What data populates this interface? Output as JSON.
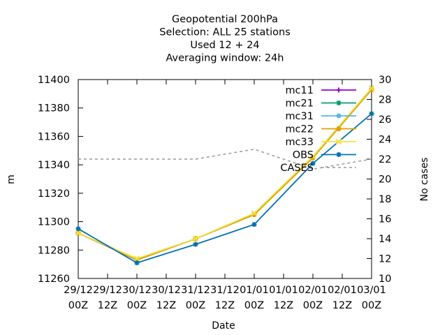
{
  "chart_data": {
    "type": "line",
    "title_lines": [
      "Geopotential 200hPa",
      "Selection: ALL      25 stations",
      "Used  12 + 24",
      "Averaging window: 24h"
    ],
    "xlabel": "Date",
    "ylabel": "m",
    "y2label": "No cases",
    "x_ticks": [
      {
        "top": "29/12",
        "bottom": "00Z"
      },
      {
        "top": "29/12",
        "bottom": "12Z"
      },
      {
        "top": "30/12",
        "bottom": "00Z"
      },
      {
        "top": "30/12",
        "bottom": "12Z"
      },
      {
        "top": "31/12",
        "bottom": "00Z"
      },
      {
        "top": "31/12",
        "bottom": "12Z"
      },
      {
        "top": "01/01",
        "bottom": "00Z"
      },
      {
        "top": "01/01",
        "bottom": "12Z"
      },
      {
        "top": "02/01",
        "bottom": "00Z"
      },
      {
        "top": "02/01",
        "bottom": "12Z"
      },
      {
        "top": "03/01",
        "bottom": "00Z"
      }
    ],
    "x_range": [
      0,
      10
    ],
    "ylim": [
      11260,
      11400
    ],
    "y_ticks": [
      11260,
      11280,
      11300,
      11320,
      11340,
      11360,
      11380,
      11400
    ],
    "y2lim": [
      10,
      30
    ],
    "y2_ticks": [
      10,
      12,
      14,
      16,
      18,
      20,
      22,
      24,
      26,
      28,
      30
    ],
    "legend_position": "top-right",
    "series": [
      {
        "name": "mc11",
        "color": "#9400d3",
        "marker": "plus",
        "axis": "y",
        "x": [
          0,
          2,
          4,
          6,
          8,
          10
        ],
        "values": [
          11292,
          11273,
          11288,
          11305,
          11345,
          11393
        ]
      },
      {
        "name": "mc21",
        "color": "#009e73",
        "marker": "star",
        "axis": "y",
        "x": [
          0,
          2,
          4,
          6,
          8,
          10
        ],
        "values": [
          11292,
          11273,
          11288,
          11305,
          11345,
          11393
        ]
      },
      {
        "name": "mc31",
        "color": "#56b4e9",
        "marker": "star",
        "axis": "y",
        "x": [
          0,
          2,
          4,
          6,
          8,
          10
        ],
        "values": [
          11292,
          11273,
          11288,
          11305,
          11345,
          11393
        ]
      },
      {
        "name": "mc22",
        "color": "#e69f00",
        "marker": "circle",
        "axis": "y",
        "x": [
          0,
          2,
          4,
          6,
          8,
          10
        ],
        "values": [
          11292,
          11273,
          11288,
          11305,
          11345,
          11393
        ]
      },
      {
        "name": "mc33",
        "color": "#f0e442",
        "marker": "x",
        "axis": "y",
        "x": [
          0,
          2,
          4,
          6,
          8,
          10
        ],
        "values": [
          11292,
          11274,
          11288,
          11306,
          11346,
          11394
        ]
      },
      {
        "name": "OBS",
        "color": "#0072b2",
        "marker": "star",
        "axis": "y",
        "x": [
          0,
          2,
          4,
          6,
          8,
          10
        ],
        "values": [
          11295,
          11271,
          11284,
          11298,
          11341,
          11376
        ]
      },
      {
        "name": "CASES",
        "color": "#999999",
        "dashed": true,
        "axis": "y2",
        "x": [
          0,
          2,
          4,
          6,
          8,
          10
        ],
        "values": [
          22,
          22,
          22,
          23,
          21,
          22
        ]
      }
    ]
  }
}
